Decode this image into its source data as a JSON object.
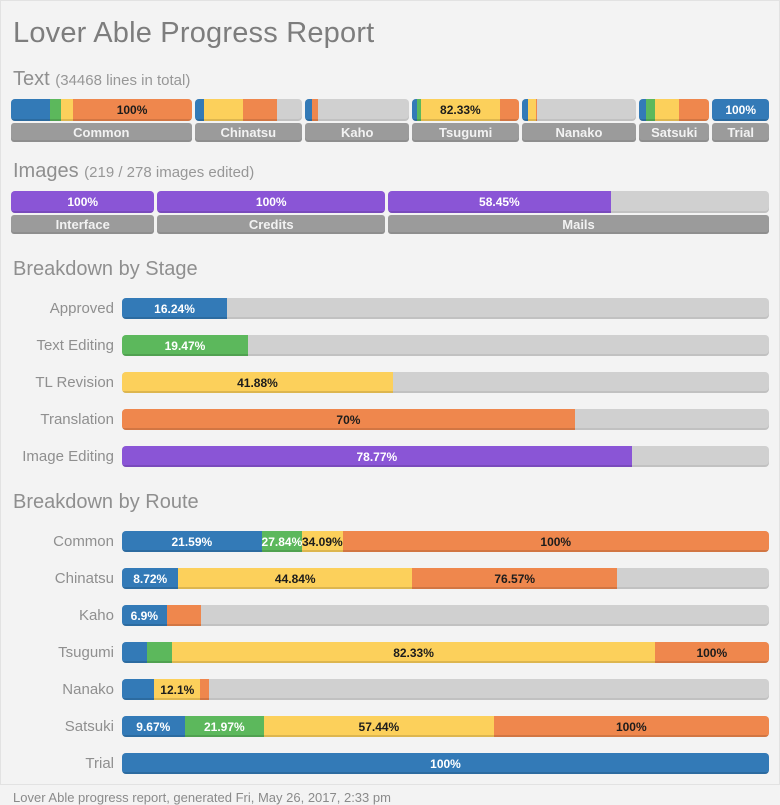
{
  "page": {
    "title": "Lover Able Progress Report",
    "footer": "Lover Able progress report, generated Fri, May 26, 2017, 2:33 pm"
  },
  "colors": {
    "approved": "#337ab7",
    "edited": "#5cb85c",
    "revised": "#fcd05b",
    "translated": "#ef874d",
    "image_editing": "#8a55d6",
    "track": "#d0d0d0",
    "caption": "#9b9b9b"
  },
  "text_section": {
    "heading": "Text",
    "subheading": "(34468 lines in total)",
    "sections": [
      {
        "name": "Common",
        "weight": 185,
        "segments": [
          {
            "color": "approved",
            "to": 21.59
          },
          {
            "color": "edited",
            "to": 27.84
          },
          {
            "color": "revised",
            "to": 34.09
          },
          {
            "color": "translated",
            "to": 100,
            "label": "100%",
            "text": "dark"
          }
        ]
      },
      {
        "name": "Chinatsu",
        "weight": 110,
        "segments": [
          {
            "color": "approved",
            "to": 8.72
          },
          {
            "color": "revised",
            "to": 44.84
          },
          {
            "color": "translated",
            "to": 76.57
          }
        ]
      },
      {
        "name": "Kaho",
        "weight": 107,
        "segments": [
          {
            "color": "approved",
            "to": 6.9
          },
          {
            "color": "translated",
            "to": 12.2
          }
        ]
      },
      {
        "name": "Tsugumi",
        "weight": 109,
        "segments": [
          {
            "color": "approved",
            "to": 3.9
          },
          {
            "color": "edited",
            "to": 7.8
          },
          {
            "color": "revised",
            "to": 82.33,
            "label": "82.33%",
            "text": "dark"
          },
          {
            "color": "translated",
            "to": 100
          }
        ]
      },
      {
        "name": "Nanako",
        "weight": 117,
        "segments": [
          {
            "color": "approved",
            "to": 5
          },
          {
            "color": "revised",
            "to": 12.1
          },
          {
            "color": "translated",
            "to": 13.5
          }
        ]
      },
      {
        "name": "Satsuki",
        "weight": 72,
        "segments": [
          {
            "color": "approved",
            "to": 9.67
          },
          {
            "color": "edited",
            "to": 21.97
          },
          {
            "color": "revised",
            "to": 57.44
          },
          {
            "color": "translated",
            "to": 100
          }
        ]
      },
      {
        "name": "Trial",
        "weight": 58,
        "segments": [
          {
            "color": "approved",
            "to": 100,
            "label": "100%",
            "text": "light"
          }
        ]
      }
    ]
  },
  "images_section": {
    "heading": "Images",
    "subheading": "(219 / 278 images edited)",
    "sections": [
      {
        "name": "Interface",
        "weight": 145,
        "segments": [
          {
            "color": "image_editing",
            "to": 100,
            "label": "100%",
            "text": "light"
          }
        ]
      },
      {
        "name": "Credits",
        "weight": 230,
        "segments": [
          {
            "color": "image_editing",
            "to": 100,
            "label": "100%",
            "text": "light"
          }
        ]
      },
      {
        "name": "Mails",
        "weight": 385,
        "segments": [
          {
            "color": "image_editing",
            "to": 58.45,
            "label": "58.45%",
            "text": "light"
          }
        ]
      }
    ]
  },
  "stage_section": {
    "heading": "Breakdown by Stage",
    "rows": [
      {
        "label": "Approved",
        "segments": [
          {
            "color": "approved",
            "to": 16.24,
            "label": "16.24%",
            "text": "light"
          }
        ]
      },
      {
        "label": "Text Editing",
        "segments": [
          {
            "color": "edited",
            "to": 19.47,
            "label": "19.47%",
            "text": "light"
          }
        ]
      },
      {
        "label": "TL Revision",
        "segments": [
          {
            "color": "revised",
            "to": 41.88,
            "label": "41.88%",
            "text": "dark"
          }
        ]
      },
      {
        "label": "Translation",
        "segments": [
          {
            "color": "translated",
            "to": 70,
            "label": "70%",
            "text": "dark"
          }
        ]
      },
      {
        "label": "Image Editing",
        "segments": [
          {
            "color": "image_editing",
            "to": 78.77,
            "label": "78.77%",
            "text": "light"
          }
        ]
      }
    ]
  },
  "route_section": {
    "heading": "Breakdown by Route",
    "rows": [
      {
        "label": "Common",
        "segments": [
          {
            "color": "approved",
            "to": 21.59,
            "label": "21.59%",
            "text": "light"
          },
          {
            "color": "edited",
            "to": 27.84,
            "label": "27.84%",
            "text": "light"
          },
          {
            "color": "revised",
            "to": 34.09,
            "label": "34.09%",
            "text": "dark"
          },
          {
            "color": "translated",
            "to": 100,
            "label": "100%",
            "text": "dark"
          }
        ]
      },
      {
        "label": "Chinatsu",
        "segments": [
          {
            "color": "approved",
            "to": 8.72,
            "label": "8.72%",
            "text": "light"
          },
          {
            "color": "revised",
            "to": 44.84,
            "label": "44.84%",
            "text": "dark"
          },
          {
            "color": "translated",
            "to": 76.57,
            "label": "76.57%",
            "text": "dark"
          }
        ]
      },
      {
        "label": "Kaho",
        "segments": [
          {
            "color": "approved",
            "to": 6.9,
            "label": "6.9%",
            "text": "light"
          },
          {
            "color": "translated",
            "to": 12.2
          }
        ]
      },
      {
        "label": "Tsugumi",
        "segments": [
          {
            "color": "approved",
            "to": 3.9
          },
          {
            "color": "edited",
            "to": 7.8
          },
          {
            "color": "revised",
            "to": 82.33,
            "label": "82.33%",
            "text": "dark"
          },
          {
            "color": "translated",
            "to": 100,
            "label": "100%",
            "text": "dark"
          }
        ]
      },
      {
        "label": "Nanako",
        "segments": [
          {
            "color": "approved",
            "to": 5
          },
          {
            "color": "revised",
            "to": 12.1,
            "label": "12.1%",
            "text": "dark"
          },
          {
            "color": "translated",
            "to": 13.5
          }
        ]
      },
      {
        "label": "Satsuki",
        "segments": [
          {
            "color": "approved",
            "to": 9.67,
            "label": "9.67%",
            "text": "light"
          },
          {
            "color": "edited",
            "to": 21.97,
            "label": "21.97%",
            "text": "light"
          },
          {
            "color": "revised",
            "to": 57.44,
            "label": "57.44%",
            "text": "dark"
          },
          {
            "color": "translated",
            "to": 100,
            "label": "100%",
            "text": "dark"
          }
        ]
      },
      {
        "label": "Trial",
        "segments": [
          {
            "color": "approved",
            "to": 100,
            "label": "100%",
            "text": "light"
          }
        ]
      }
    ]
  },
  "chart_data": [
    {
      "type": "bar",
      "title": "Text (34468 lines in total)",
      "subtype": "stacked-progress-by-section",
      "categories": [
        "Common",
        "Chinatsu",
        "Kaho",
        "Tsugumi",
        "Nanako",
        "Satsuki",
        "Trial"
      ],
      "section_width_weights": [
        185,
        110,
        107,
        109,
        117,
        72,
        58
      ],
      "series": [
        {
          "name": "Approved",
          "values": [
            21.59,
            8.72,
            6.9,
            3.9,
            5,
            9.67,
            100
          ]
        },
        {
          "name": "Text Editing",
          "values": [
            27.84,
            8.72,
            6.9,
            7.8,
            5,
            21.97,
            100
          ]
        },
        {
          "name": "TL Revision",
          "values": [
            34.09,
            44.84,
            6.9,
            82.33,
            12.1,
            57.44,
            100
          ]
        },
        {
          "name": "Translation",
          "values": [
            100,
            76.57,
            12.2,
            100,
            13.5,
            100,
            100
          ]
        }
      ],
      "visible_data_labels": [
        "Common: 100%",
        "Tsugumi: 82.33%",
        "Trial: 100%"
      ],
      "ylim": [
        0,
        100
      ],
      "grid": false,
      "legend": "none",
      "note": "values are cumulative % per stage; unlabeled segment values estimated from pixel widths"
    },
    {
      "type": "bar",
      "title": "Images (219 / 278 images edited)",
      "subtype": "progress-by-section",
      "categories": [
        "Interface",
        "Credits",
        "Mails"
      ],
      "values": [
        100,
        100,
        58.45
      ],
      "section_width_weights": [
        145,
        230,
        385
      ],
      "visible_data_labels": [
        "100%",
        "100%",
        "58.45%"
      ],
      "ylim": [
        0,
        100
      ],
      "grid": false,
      "legend": "none"
    },
    {
      "type": "bar",
      "title": "Breakdown by Stage",
      "orientation": "horizontal",
      "categories": [
        "Approved",
        "Text Editing",
        "TL Revision",
        "Translation",
        "Image Editing"
      ],
      "values": [
        16.24,
        19.47,
        41.88,
        70,
        78.77
      ],
      "visible_data_labels": [
        "16.24%",
        "19.47%",
        "41.88%",
        "70%",
        "78.77%"
      ],
      "xlim": [
        0,
        100
      ],
      "grid": false,
      "legend": "none"
    },
    {
      "type": "bar",
      "title": "Breakdown by Route",
      "orientation": "horizontal",
      "subtype": "stacked-progress",
      "categories": [
        "Common",
        "Chinatsu",
        "Kaho",
        "Tsugumi",
        "Nanako",
        "Satsuki",
        "Trial"
      ],
      "series": [
        {
          "name": "Approved",
          "values": [
            21.59,
            8.72,
            6.9,
            3.9,
            5,
            9.67,
            100
          ]
        },
        {
          "name": "Text Editing",
          "values": [
            27.84,
            8.72,
            6.9,
            7.8,
            5,
            21.97,
            100
          ]
        },
        {
          "name": "TL Revision",
          "values": [
            34.09,
            44.84,
            6.9,
            82.33,
            12.1,
            57.44,
            100
          ]
        },
        {
          "name": "Translation",
          "values": [
            100,
            76.57,
            12.2,
            100,
            13.5,
            100,
            100
          ]
        }
      ],
      "visible_data_labels": {
        "Common": [
          "21.59%",
          "27.84%",
          "34.09%",
          "100%"
        ],
        "Chinatsu": [
          "8.72%",
          "44.84%",
          "76.57%"
        ],
        "Kaho": [
          "6.9%"
        ],
        "Tsugumi": [
          "82.33%",
          "100%"
        ],
        "Nanako": [
          "12.1%"
        ],
        "Satsuki": [
          "9.67%",
          "21.97%",
          "57.44%",
          "100%"
        ],
        "Trial": [
          "100%"
        ]
      },
      "xlim": [
        0,
        100
      ],
      "grid": false,
      "legend": "none",
      "note": "values are cumulative % per stage; unlabeled segment values estimated from pixel widths"
    }
  ]
}
